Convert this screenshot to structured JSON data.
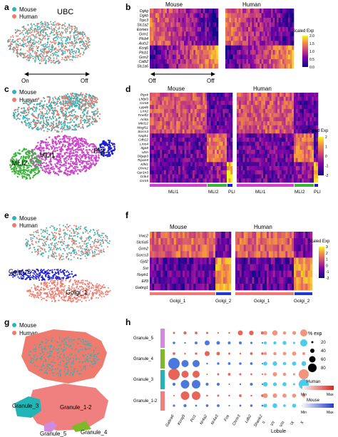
{
  "panels": {
    "a": {
      "letter": "a",
      "title": "UBC",
      "legend": [
        "Mouse",
        "Human"
      ],
      "axis_left": "On",
      "axis_right": "Off"
    },
    "b": {
      "letter": "b",
      "groups": [
        "Mouse",
        "Human"
      ],
      "genes": [
        "Dgkg",
        "Dgkb",
        "Trpc3",
        "Slc1a2",
        "Eomes",
        "Grm1",
        "Plcb4",
        "Auts2",
        "Kcnj6",
        "Plcb1",
        "Grm2",
        "Calb2",
        "Slc1a6"
      ],
      "colorbar_title": "Scaled Exp",
      "colorbar_ticks": [
        "2.0",
        "1.5",
        "1.0",
        "0.5",
        "0.0"
      ],
      "axis_left": "On",
      "axis_right": "Off"
    },
    "c": {
      "letter": "c",
      "legend": [
        "Mouse",
        "Human"
      ],
      "clusters": [
        "MLI1",
        "MLI2",
        "PLI"
      ]
    },
    "d": {
      "letter": "d",
      "groups": [
        "Mouse",
        "Human"
      ],
      "genes": [
        "Ptprk",
        "Lhfpl3",
        "Grm8",
        "Lypd6",
        "Lrrn2",
        "Tmeff2",
        "Arl4a",
        "Mtcl12",
        "Megf11",
        "Sorcs3",
        "Nxph1",
        "Cdh22",
        "Lmo4",
        "Itga8",
        "Utrn",
        "Dlgap3",
        "Tspan9",
        "Klhl1",
        "Chrm2",
        "Gpr1n3",
        "Grik4",
        "Grm5"
      ],
      "colorbar_title": "Scaled Exp",
      "colorbar_ticks": [
        "2",
        "1",
        "0",
        "-1",
        "-2"
      ],
      "footer_labels": [
        "MLI1",
        "MLI2",
        "PLI",
        "MLI1",
        "MLI2",
        "PLI"
      ]
    },
    "e": {
      "letter": "e",
      "legend": [
        "Mouse",
        "Human"
      ],
      "clusters": [
        "Golgi_2",
        "Golgi_1"
      ]
    },
    "f": {
      "letter": "f",
      "groups": [
        "Mouse",
        "Human"
      ],
      "genes": [
        "Vwc2",
        "Slc6a5",
        "Grm2",
        "Sorcs3",
        "Gjd2",
        "Sst",
        "Nxph1",
        "Elf3",
        "Gabrg1"
      ],
      "colorbar_title": "Scaled Exp",
      "colorbar_ticks": [
        "3",
        "2",
        "1",
        "0",
        "-1",
        "-2"
      ],
      "footer_labels": [
        "Golgi_1",
        "Golgi_2",
        "Golgi_1",
        "Golgi_2"
      ]
    },
    "g": {
      "letter": "g",
      "legend": [
        "Mouse",
        "Human"
      ],
      "clusters": [
        "Granule_3",
        "Granule_1-2",
        "Granule_5",
        "Granule_4"
      ]
    },
    "h": {
      "letter": "h",
      "rows": [
        "Granule_5",
        "Granule_4",
        "Granule_3",
        "Granule_1-2"
      ],
      "genes": [
        "Gabra6",
        "Kcnq5",
        "Pcl1",
        "Nr4a2",
        "Nr4a3",
        "Fos",
        "Chrm3",
        "Ldb2",
        "Shank2"
      ],
      "lobules": [
        "II",
        "VII",
        "VIII",
        "IX",
        "X"
      ],
      "lobule_axis_label": "Lobule",
      "size_legend_title": "% exp",
      "size_legend_values": [
        "20",
        "40",
        "60",
        "80"
      ],
      "human_label": "Human",
      "mouse_label": "Mouse",
      "min_label": "Min",
      "max_label": "Max"
    }
  },
  "colors": {
    "mouse": "#2bb5b5",
    "human": "#ee7b6e",
    "cluster_green": "#3bb33b",
    "cluster_magenta": "#cc44cc",
    "cluster_blue": "#1a1ad0",
    "granule_5": "#d28ae0",
    "granule_4": "#80b82a",
    "granule_3": "#23b5b5",
    "granule_12": "#f08080",
    "footer_golgi1": "#ef7a72",
    "footer_golgi2": "#1e3ad0"
  }
}
